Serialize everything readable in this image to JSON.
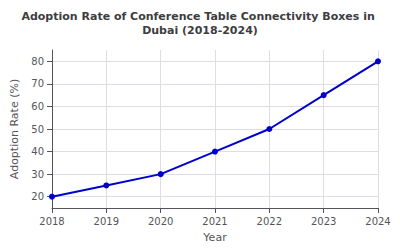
{
  "chart_data": {
    "type": "line",
    "title": "Adoption Rate of Conference Table Connectivity Boxes in Dubai (2018-2024)",
    "xlabel": "Year",
    "ylabel": "Adoption Rate (%)",
    "x": [
      2018,
      2019,
      2020,
      2021,
      2022,
      2023,
      2024
    ],
    "values": [
      20,
      25,
      30,
      40,
      50,
      65,
      80
    ],
    "color": "#0000cc",
    "marker": "circle",
    "xlim": [
      2018,
      2024
    ],
    "xticks": [
      2018,
      2019,
      2020,
      2021,
      2022,
      2023,
      2024
    ],
    "ylim": [
      15,
      85
    ],
    "yticks": [
      20,
      30,
      40,
      50,
      60,
      70,
      80
    ],
    "grid": true
  }
}
